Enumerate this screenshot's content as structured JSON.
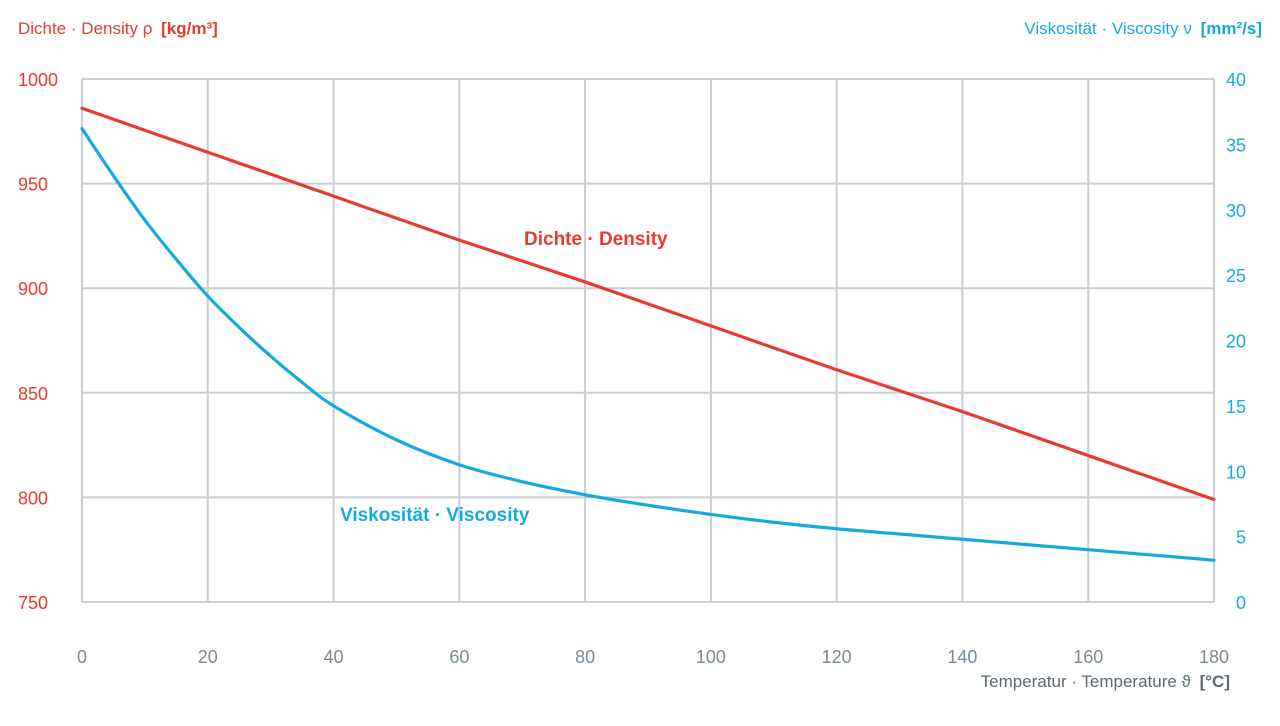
{
  "chart_data": {
    "type": "line",
    "x_axis": {
      "label": "Temperatur · Temperature ϑ",
      "unit": "[°C]",
      "range": [
        0,
        180
      ],
      "ticks": [
        0,
        20,
        40,
        60,
        80,
        100,
        120,
        140,
        160,
        180
      ],
      "grid": true
    },
    "y_axis_left": {
      "label": "Dichte · Density ρ",
      "unit": "[kg/m³]",
      "range": [
        750,
        1000
      ],
      "ticks": [
        750,
        800,
        850,
        900,
        950,
        1000
      ],
      "color": "#e63a33"
    },
    "y_axis_right": {
      "label": "Viskosität · Viscosity ν",
      "unit": "[mm²/s]",
      "range": [
        0,
        40
      ],
      "ticks": [
        0,
        5,
        10,
        15,
        20,
        25,
        30,
        35,
        40
      ],
      "color": "#16a9de"
    },
    "series": [
      {
        "name": "Dichte · Density",
        "axis": "left",
        "color": "#e63a33",
        "x": [
          0,
          20,
          40,
          60,
          80,
          100,
          120,
          140,
          160,
          180
        ],
        "values": [
          986,
          965,
          944,
          923,
          903,
          882,
          861,
          841,
          820,
          799
        ]
      },
      {
        "name": "Viskosität · Viscosity",
        "axis": "right",
        "color": "#16a9de",
        "x": [
          0,
          5,
          10,
          15,
          20,
          25,
          30,
          35,
          40,
          50,
          60,
          70,
          80,
          90,
          100,
          110,
          120,
          130,
          140,
          150,
          160,
          170,
          180
        ],
        "values": [
          36.2,
          32.6,
          29.2,
          26.2,
          23.4,
          21.0,
          18.8,
          16.8,
          15.0,
          12.4,
          10.5,
          9.2,
          8.2,
          7.4,
          6.7,
          6.1,
          5.6,
          5.2,
          4.8,
          4.4,
          4.0,
          3.6,
          3.2
        ]
      }
    ]
  }
}
